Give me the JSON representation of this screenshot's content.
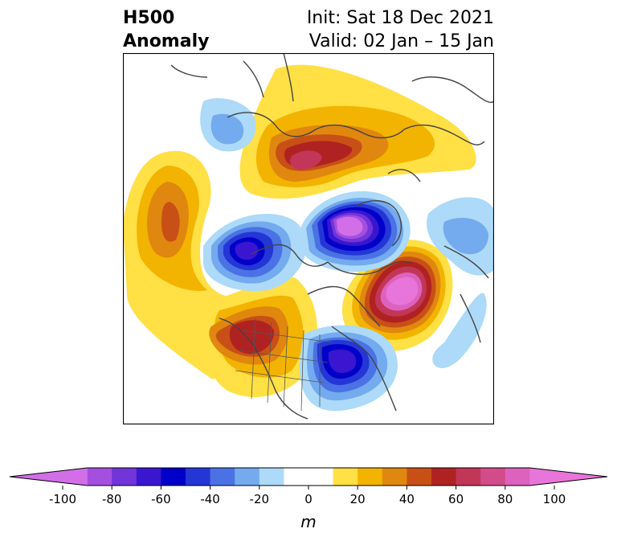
{
  "title": {
    "left_line1": "H500",
    "left_line2": "Anomaly",
    "right_line1": "Init: Sat 18 Dec 2021",
    "right_line2": "Valid: 02 Jan – 15 Jan"
  },
  "colorbar": {
    "unit_label": "m",
    "ticks": [
      "-100",
      "-80",
      "-60",
      "-40",
      "-20",
      "0",
      "20",
      "40",
      "60",
      "80",
      "100"
    ],
    "tick_values": [
      -100,
      -80,
      -60,
      -40,
      -20,
      0,
      20,
      40,
      60,
      80,
      100
    ],
    "levels": [
      -100,
      -90,
      -80,
      -70,
      -60,
      -50,
      -40,
      -30,
      -20,
      -10,
      10,
      20,
      30,
      40,
      50,
      60,
      70,
      80,
      90,
      100
    ],
    "colors": [
      "#d26fe8",
      "#a44fe0",
      "#7135d9",
      "#3a16d0",
      "#0000c8",
      "#2436d6",
      "#4a72e4",
      "#74aaee",
      "#acdaf8",
      "#ffffff",
      "#ffe045",
      "#f2b400",
      "#e08710",
      "#c85016",
      "#b02222",
      "#c23658",
      "#d24c8a",
      "#dc62be",
      "#e875da"
    ],
    "extend": "both"
  },
  "map": {
    "projection": "polar stereographic (North America / Arctic)",
    "field": "500 hPa geopotential height anomaly",
    "features": [
      {
        "name": "central-canada-trough",
        "anomaly": "negative",
        "peak_m": -100
      },
      {
        "name": "alaska-trough",
        "anomaly": "negative",
        "peak_m": -60
      },
      {
        "name": "siberia-ridge",
        "anomaly": "positive",
        "peak_m": 60
      },
      {
        "name": "north-atlantic-ridge",
        "anomaly": "positive",
        "peak_m": 100
      },
      {
        "name": "east-pacific-ridge",
        "anomaly": "positive",
        "peak_m": 50
      },
      {
        "name": "western-us-ridge",
        "anomaly": "positive",
        "peak_m": 60
      },
      {
        "name": "great-lakes-trough",
        "anomaly": "negative",
        "peak_m": -60
      },
      {
        "name": "europe-trough",
        "anomaly": "negative",
        "peak_m": -20
      },
      {
        "name": "far-east-trough",
        "anomaly": "negative",
        "peak_m": -20
      },
      {
        "name": "subtropical-atlantic-trough",
        "anomaly": "negative",
        "peak_m": -20
      }
    ]
  }
}
